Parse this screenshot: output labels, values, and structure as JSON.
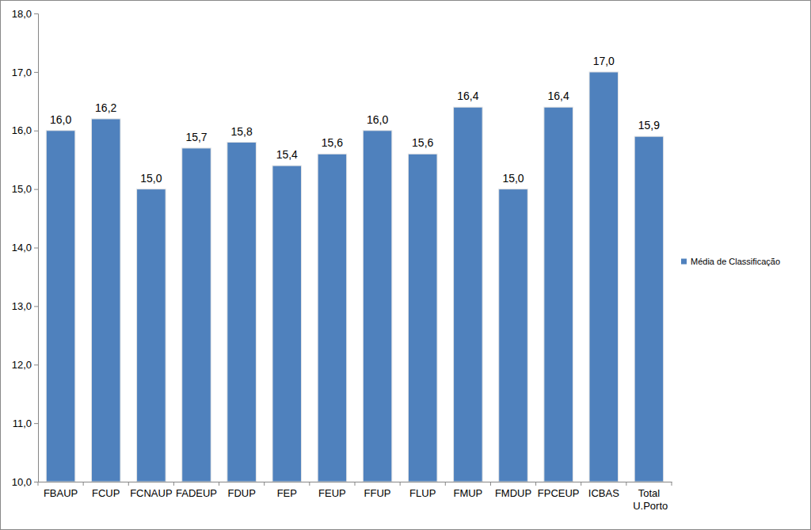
{
  "chart_data": {
    "type": "bar",
    "categories": [
      "FBAUP",
      "FCUP",
      "FCNAUP",
      "FADEUP",
      "FDUP",
      "FEP",
      "FEUP",
      "FFUP",
      "FLUP",
      "FMUP",
      "FMDUP",
      "FPCEUP",
      "ICBAS",
      "Total U.Porto"
    ],
    "series": [
      {
        "name": "Média de Classificação",
        "color": "#4f81bd",
        "values": [
          16.0,
          16.2,
          15.0,
          15.7,
          15.8,
          15.4,
          15.6,
          16.0,
          15.6,
          16.4,
          15.0,
          16.4,
          17.0,
          15.9
        ],
        "value_labels": [
          "16,0",
          "16,2",
          "15,0",
          "15,7",
          "15,8",
          "15,4",
          "15,6",
          "16,0",
          "15,6",
          "16,4",
          "15,0",
          "16,4",
          "17,0",
          "15,9"
        ]
      }
    ],
    "ylim": [
      10,
      18
    ],
    "yticks": [
      {
        "value": 10,
        "label": "10,0"
      },
      {
        "value": 11,
        "label": "11,0"
      },
      {
        "value": 12,
        "label": "12,0"
      },
      {
        "value": 13,
        "label": "13,0"
      },
      {
        "value": 14,
        "label": "14,0"
      },
      {
        "value": 15,
        "label": "15,0"
      },
      {
        "value": 16,
        "label": "16,0"
      },
      {
        "value": 17,
        "label": "17,0"
      },
      {
        "value": 18,
        "label": "18,0"
      }
    ],
    "grid": false,
    "legend": "right",
    "data_labels": true
  }
}
